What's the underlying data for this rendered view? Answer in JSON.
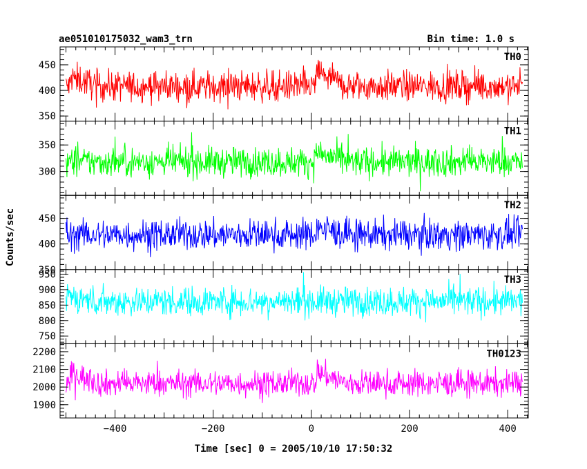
{
  "chart_data": {
    "type": "line",
    "title": "ae051010175032_wam3_trn",
    "bin_time": "Bin time: 1.0 s",
    "xlabel": "Time [sec] 0 = 2005/10/10 17:50:32",
    "ylabel": "Counts/sec",
    "xlim": [
      -512,
      442
    ],
    "x_ticks": [
      -400,
      -200,
      0,
      200,
      400
    ],
    "x_ticklabels": [
      "−400",
      "−200",
      "0",
      "200",
      "400"
    ],
    "series_x_range": [
      -500,
      430
    ],
    "series_x_step": 1,
    "panels": [
      {
        "name": "TH0",
        "color": "#ff0000",
        "ylim": [
          340,
          485
        ],
        "y_ticks": [
          350,
          400,
          450
        ],
        "mean": 408,
        "noise": 20,
        "bursts": [
          {
            "t": 10,
            "amp": 30
          },
          {
            "t": -490,
            "amp": 18
          }
        ]
      },
      {
        "name": "TH1",
        "color": "#00ff00",
        "ylim": [
          255,
          395
        ],
        "y_ticks": [
          300,
          350
        ],
        "mean": 318,
        "noise": 19,
        "bursts": [
          {
            "t": 10,
            "amp": 18
          }
        ]
      },
      {
        "name": "TH2",
        "color": "#0000ff",
        "ylim": [
          350,
          495
        ],
        "y_ticks": [
          350,
          400,
          450
        ],
        "mean": 418,
        "noise": 20,
        "bursts": [
          {
            "t": 10,
            "amp": 15
          }
        ]
      },
      {
        "name": "TH3",
        "color": "#00ffff",
        "ylim": [
          725,
          965
        ],
        "y_ticks": [
          750,
          800,
          850,
          900,
          950
        ],
        "mean": 862,
        "noise": 32,
        "bursts": [
          {
            "t": -500,
            "amp": 20
          }
        ]
      },
      {
        "name": "TH0123",
        "color": "#ff00ff",
        "ylim": [
          1825,
          2245
        ],
        "y_ticks": [
          1900,
          2000,
          2100,
          2200
        ],
        "mean": 2020,
        "noise": 50,
        "bursts": [
          {
            "t": 10,
            "amp": 70
          },
          {
            "t": -490,
            "amp": 60
          }
        ]
      }
    ]
  }
}
